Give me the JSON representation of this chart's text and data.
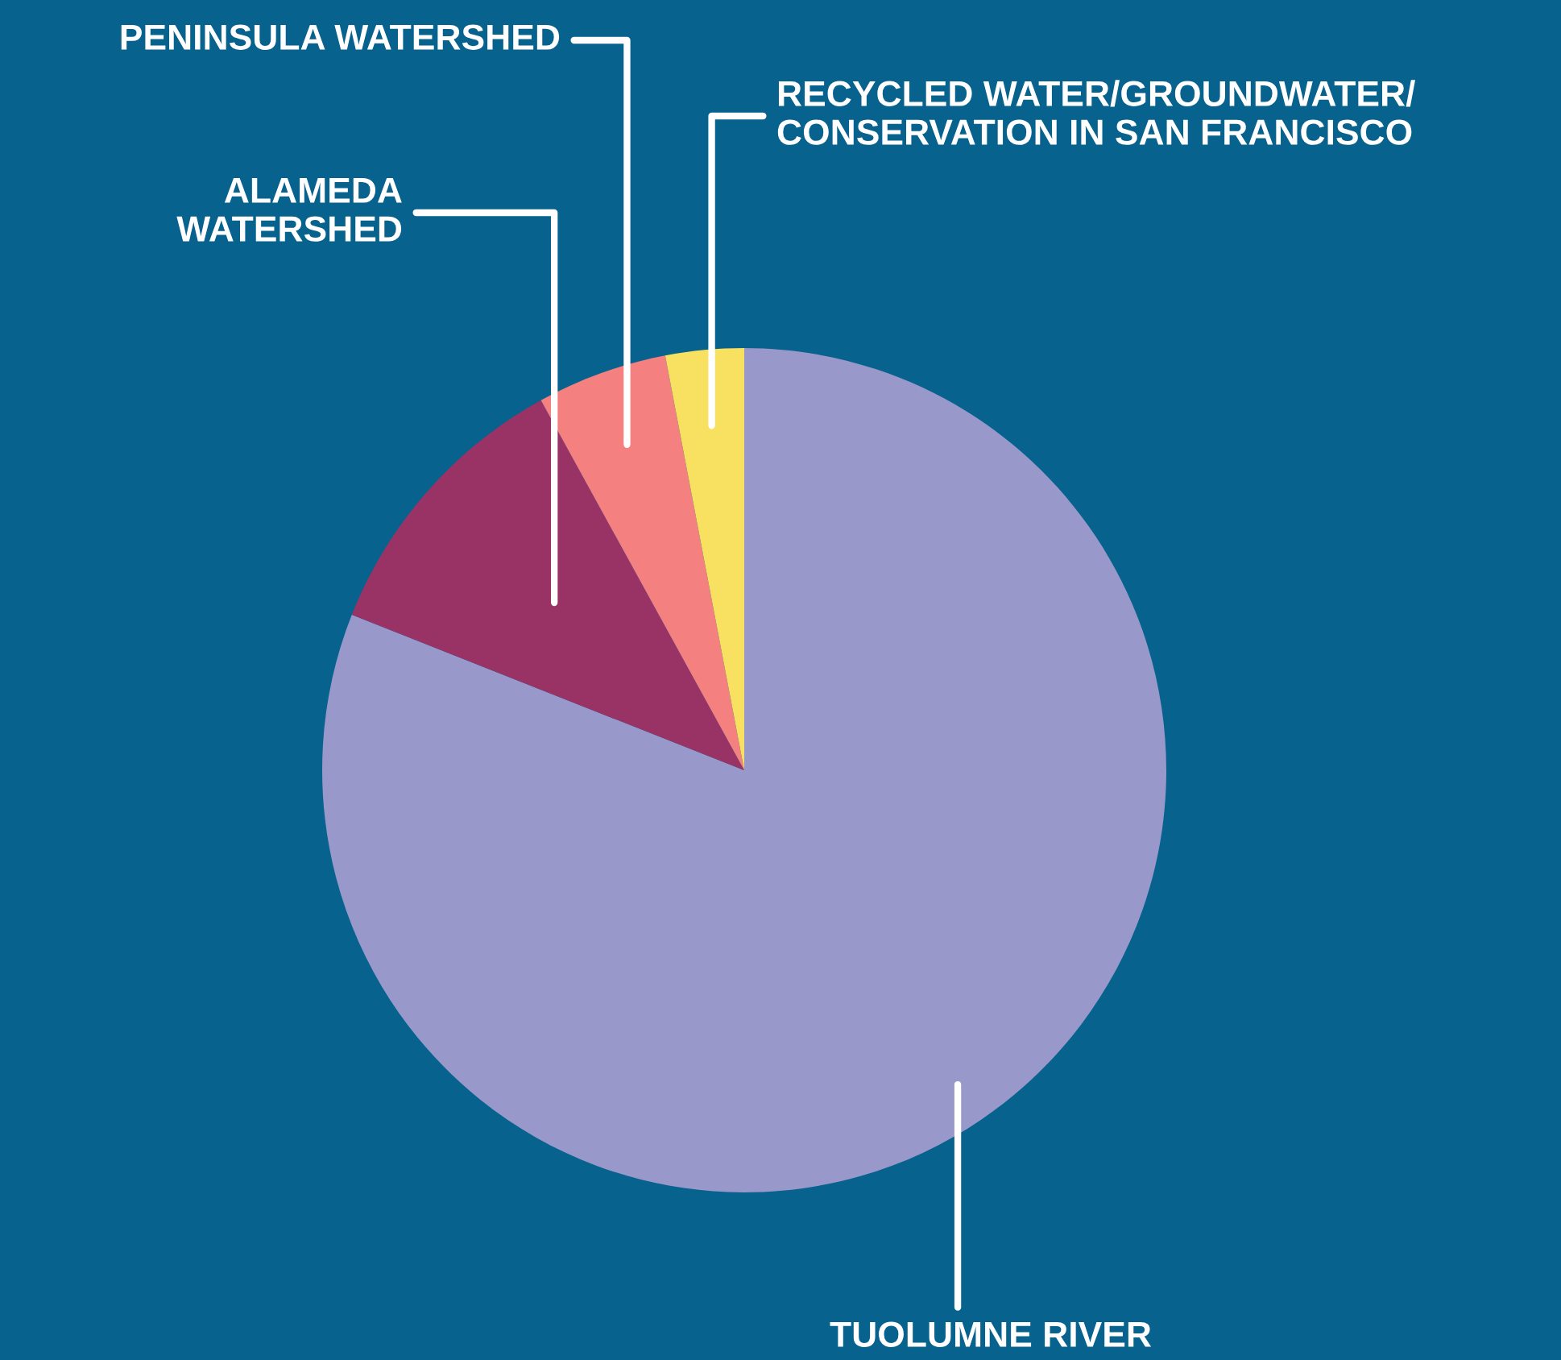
{
  "chart_data": {
    "type": "pie",
    "categories": [
      "TUOLUMNE RIVER",
      "ALAMEDA\nWATERSHED",
      "PENINSULA WATERSHED",
      "RECYCLED WATER/GROUNDWATER/\nCONSERVATION IN SAN FRANCISCO"
    ],
    "values": [
      81,
      11,
      5,
      3
    ],
    "colors": [
      "#9898ca",
      "#993366",
      "#f48080",
      "#f8e060"
    ],
    "legend": false
  }
}
